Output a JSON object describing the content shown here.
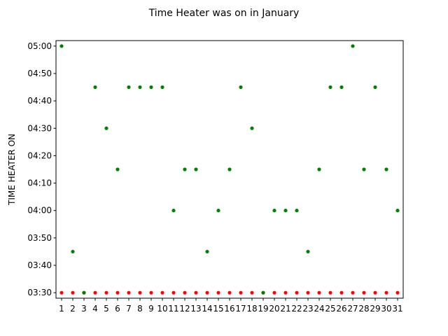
{
  "chart_data": {
    "type": "scatter",
    "title": "Time Heater was on in January",
    "xlabel": "",
    "ylabel": "TIME HEATER ON",
    "x": [
      1,
      2,
      3,
      4,
      5,
      6,
      7,
      8,
      9,
      10,
      11,
      12,
      13,
      14,
      15,
      16,
      17,
      18,
      19,
      20,
      21,
      22,
      23,
      24,
      25,
      26,
      27,
      28,
      29,
      30,
      31
    ],
    "x_tick_labels": [
      "1",
      "2",
      "3",
      "4",
      "5",
      "6",
      "7",
      "8",
      "9",
      "10",
      "11",
      "12",
      "13",
      "14",
      "15",
      "16",
      "17",
      "18",
      "19",
      "20",
      "21",
      "22",
      "23",
      "24",
      "25",
      "26",
      "27",
      "28",
      "29",
      "30",
      "31"
    ],
    "y_tick_labels": [
      "03:30",
      "03:40",
      "03:50",
      "04:00",
      "04:10",
      "04:20",
      "04:30",
      "04:40",
      "04:50",
      "05:00"
    ],
    "y_tick_values": [
      "03:30",
      "03:40",
      "03:50",
      "04:00",
      "04:10",
      "04:20",
      "04:30",
      "04:40",
      "04:50",
      "05:00"
    ],
    "xlim": [
      0.5,
      31.5
    ],
    "ylim": [
      "03:28",
      "05:02"
    ],
    "grid": false,
    "series": [
      {
        "color": "#ff0000",
        "values": [
          "03:30",
          "03:30",
          "03:30",
          "03:30",
          "03:30",
          "03:30",
          "03:30",
          "03:30",
          "03:30",
          "03:30",
          "03:30",
          "03:30",
          "03:30",
          "03:30",
          "03:30",
          "03:30",
          "03:30",
          "03:30",
          "03:30",
          "03:30",
          "03:30",
          "03:30",
          "03:30",
          "03:30",
          "03:30",
          "03:30",
          "03:30",
          "03:30",
          "03:30",
          "03:30",
          "03:30"
        ]
      },
      {
        "color": "#008000",
        "values": [
          "05:00",
          "03:45",
          "03:30",
          "04:45",
          "04:30",
          "04:15",
          "04:45",
          "04:45",
          "04:45",
          "04:45",
          "04:00",
          "04:15",
          "04:15",
          "03:45",
          "04:00",
          "04:15",
          "04:45",
          "04:30",
          "03:30",
          "04:00",
          "04:00",
          "04:00",
          "03:45",
          "04:15",
          "04:45",
          "04:45",
          "05:00",
          "04:15",
          "04:45",
          "04:15",
          "04:00"
        ]
      }
    ]
  }
}
